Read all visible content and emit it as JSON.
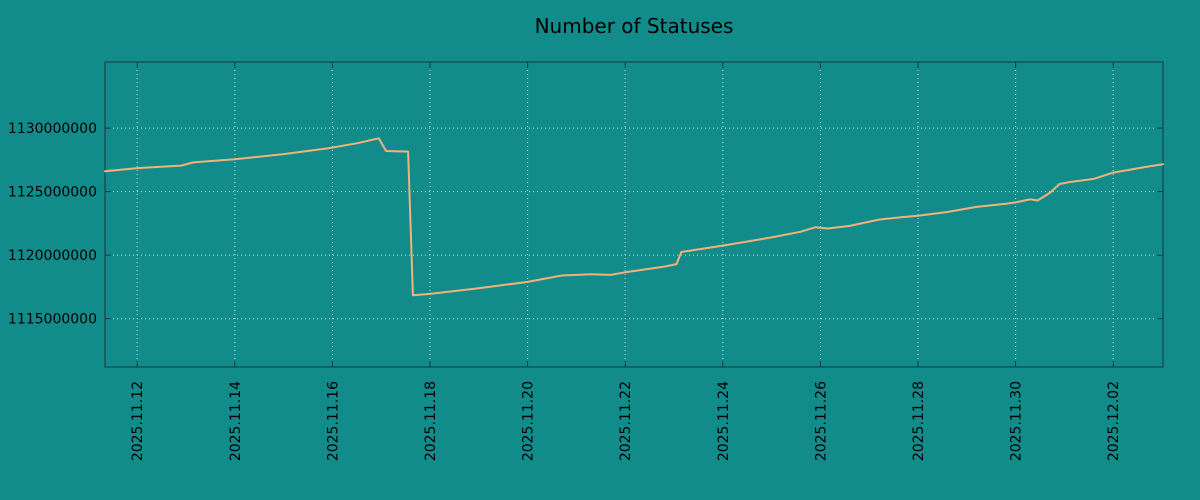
{
  "colors": {
    "background": "#128b8b",
    "line": "#f2b27c",
    "grid": "#bfdede",
    "border": "#123939",
    "text": "#000000"
  },
  "chart_data": {
    "type": "line",
    "title": "Number of Statuses",
    "xlabel": "",
    "ylabel": "",
    "grid": true,
    "legend": "none",
    "x_unit": "days since 2025.11.12",
    "xlim": [
      -0.66,
      21.02
    ],
    "ylim": [
      1111200000,
      1135200000
    ],
    "y_ticks": [
      1115000000,
      1120000000,
      1125000000,
      1130000000
    ],
    "x_ticks": [
      {
        "pos": 0,
        "label": "2025.11.12"
      },
      {
        "pos": 2,
        "label": "2025.11.14"
      },
      {
        "pos": 4,
        "label": "2025.11.16"
      },
      {
        "pos": 6,
        "label": "2025.11.18"
      },
      {
        "pos": 8,
        "label": "2025.11.20"
      },
      {
        "pos": 10,
        "label": "2025.11.22"
      },
      {
        "pos": 12,
        "label": "2025.11.24"
      },
      {
        "pos": 14,
        "label": "2025.11.26"
      },
      {
        "pos": 16,
        "label": "2025.11.28"
      },
      {
        "pos": 18,
        "label": "2025.11.30"
      },
      {
        "pos": 20,
        "label": "2025.12.02"
      }
    ],
    "series": [
      {
        "name": "statuses",
        "color": "#f2b27c",
        "points": [
          [
            -0.66,
            1126600000
          ],
          [
            0,
            1126850000
          ],
          [
            0.9,
            1127050000
          ],
          [
            1.15,
            1127300000
          ],
          [
            2,
            1127550000
          ],
          [
            3,
            1127950000
          ],
          [
            3.9,
            1128400000
          ],
          [
            4.5,
            1128800000
          ],
          [
            4.95,
            1129200000
          ],
          [
            5.1,
            1128200000
          ],
          [
            5.55,
            1128150000
          ],
          [
            5.65,
            1116850000
          ],
          [
            6,
            1116950000
          ],
          [
            7,
            1117400000
          ],
          [
            8,
            1117900000
          ],
          [
            8.7,
            1118400000
          ],
          [
            9.3,
            1118500000
          ],
          [
            9.7,
            1118450000
          ],
          [
            10,
            1118650000
          ],
          [
            10.8,
            1119100000
          ],
          [
            11.05,
            1119300000
          ],
          [
            11.15,
            1120250000
          ],
          [
            11.5,
            1120450000
          ],
          [
            12,
            1120750000
          ],
          [
            13,
            1121400000
          ],
          [
            13.6,
            1121850000
          ],
          [
            13.9,
            1122200000
          ],
          [
            14.15,
            1122100000
          ],
          [
            14.6,
            1122300000
          ],
          [
            15.2,
            1122800000
          ],
          [
            15.7,
            1123000000
          ],
          [
            16,
            1123100000
          ],
          [
            16.6,
            1123400000
          ],
          [
            17.2,
            1123800000
          ],
          [
            17.8,
            1124050000
          ],
          [
            18,
            1124150000
          ],
          [
            18.3,
            1124400000
          ],
          [
            18.45,
            1124300000
          ],
          [
            18.7,
            1124900000
          ],
          [
            18.9,
            1125600000
          ],
          [
            19.1,
            1125750000
          ],
          [
            19.6,
            1126000000
          ],
          [
            20,
            1126500000
          ],
          [
            20.6,
            1126900000
          ],
          [
            21.02,
            1127150000
          ]
        ]
      }
    ]
  }
}
